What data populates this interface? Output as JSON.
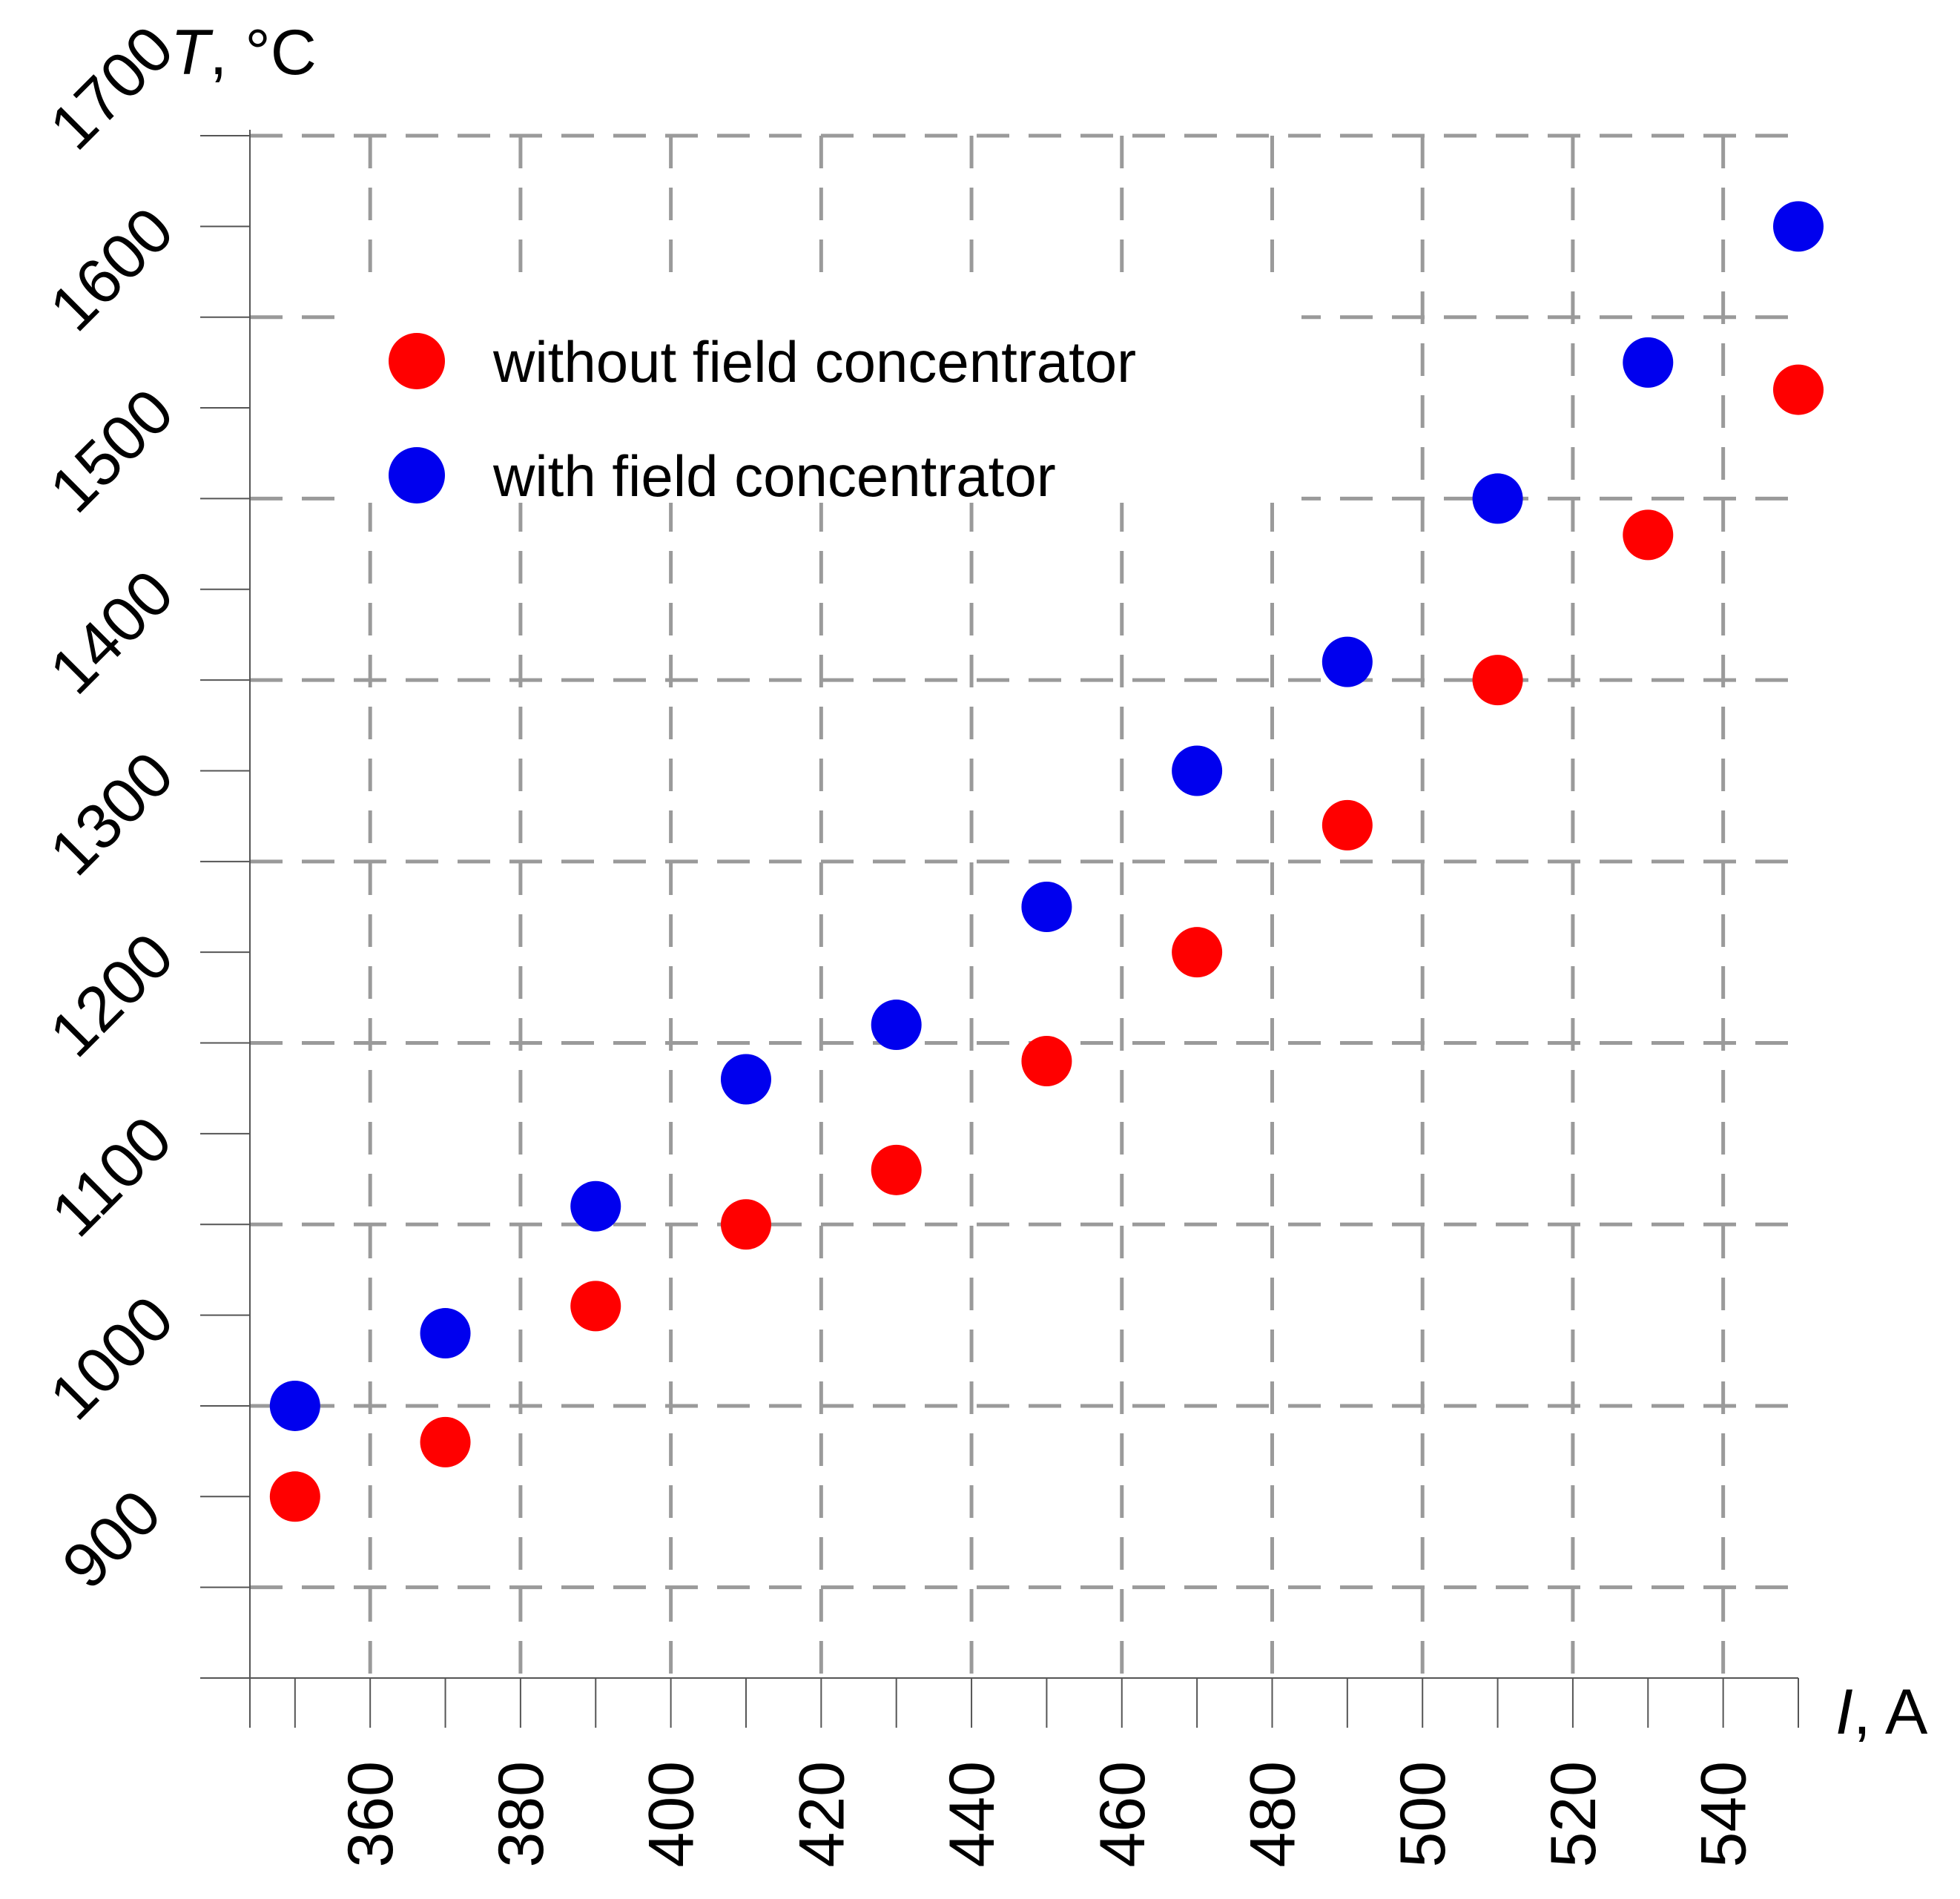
{
  "chart_data": {
    "type": "scatter",
    "title": "",
    "xlabel_var": "I",
    "xlabel_unit": ", A",
    "ylabel_var": "T",
    "ylabel_unit": ", °C",
    "xlim": [
      344,
      550
    ],
    "ylim": [
      850,
      1700
    ],
    "x_ticks": [
      360,
      380,
      400,
      420,
      440,
      460,
      480,
      500,
      520,
      540
    ],
    "y_ticks": [
      900,
      1000,
      1100,
      1200,
      1300,
      1400,
      1500,
      1600,
      1700
    ],
    "grid": true,
    "legend_position": "top-left",
    "series": [
      {
        "name": "without field concentrator",
        "color": "#ff0000",
        "x": [
          350,
          370,
          390,
          410,
          430,
          450,
          470,
          490,
          510,
          530,
          550
        ],
        "y": [
          950,
          980,
          1055,
          1100,
          1130,
          1190,
          1250,
          1320,
          1400,
          1480,
          1560
        ]
      },
      {
        "name": "with field concentrator",
        "color": "#0000ee",
        "x": [
          350,
          370,
          390,
          410,
          430,
          450,
          470,
          490,
          510,
          530,
          550
        ],
        "y": [
          1000,
          1040,
          1110,
          1180,
          1210,
          1275,
          1350,
          1410,
          1500,
          1575,
          1650
        ]
      }
    ]
  }
}
